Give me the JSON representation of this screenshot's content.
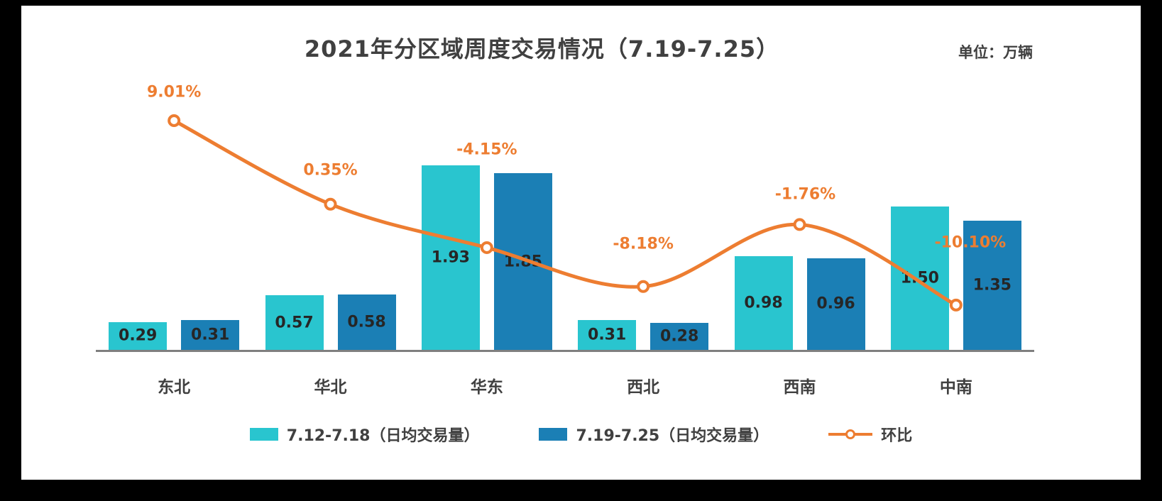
{
  "header": {
    "title": "2021年分区域周度交易情况（7.19-7.25）",
    "unit_label": "单位：万辆"
  },
  "chart_data": {
    "type": "bar",
    "subtype": "grouped bars with overlaid line (combo chart)",
    "title": "2021年分区域周度交易情况（7.19-7.25）",
    "unit": "万辆",
    "categories": [
      "东北",
      "华北",
      "华东",
      "西北",
      "西南",
      "中南"
    ],
    "series": [
      {
        "name": "7.12-7.18（日均交易量）",
        "type": "bar",
        "color": "#29C5CF",
        "values": [
          0.29,
          0.57,
          1.93,
          0.31,
          0.98,
          1.5
        ]
      },
      {
        "name": "7.19-7.25（日均交易量）",
        "type": "bar",
        "color": "#1B7FB5",
        "values": [
          0.31,
          0.58,
          1.85,
          0.28,
          0.96,
          1.35
        ]
      },
      {
        "name": "环比",
        "type": "line",
        "color": "#ED7D31",
        "values": [
          9.01,
          0.35,
          -4.15,
          -8.18,
          -1.76,
          -10.1
        ],
        "labels": [
          "9.01%",
          "0.35%",
          "-4.15%",
          "-8.18%",
          "-1.76%",
          "-10.10%"
        ]
      }
    ],
    "layout": {
      "legend_position": "bottom",
      "grid": false,
      "value_labels": "inside bars, 2 decimals",
      "pct_label_dx": [
        0,
        0,
        0,
        0,
        8,
        20
      ],
      "pct_label_dy": [
        -40,
        -48,
        -138,
        -60,
        -42,
        -88
      ]
    }
  }
}
